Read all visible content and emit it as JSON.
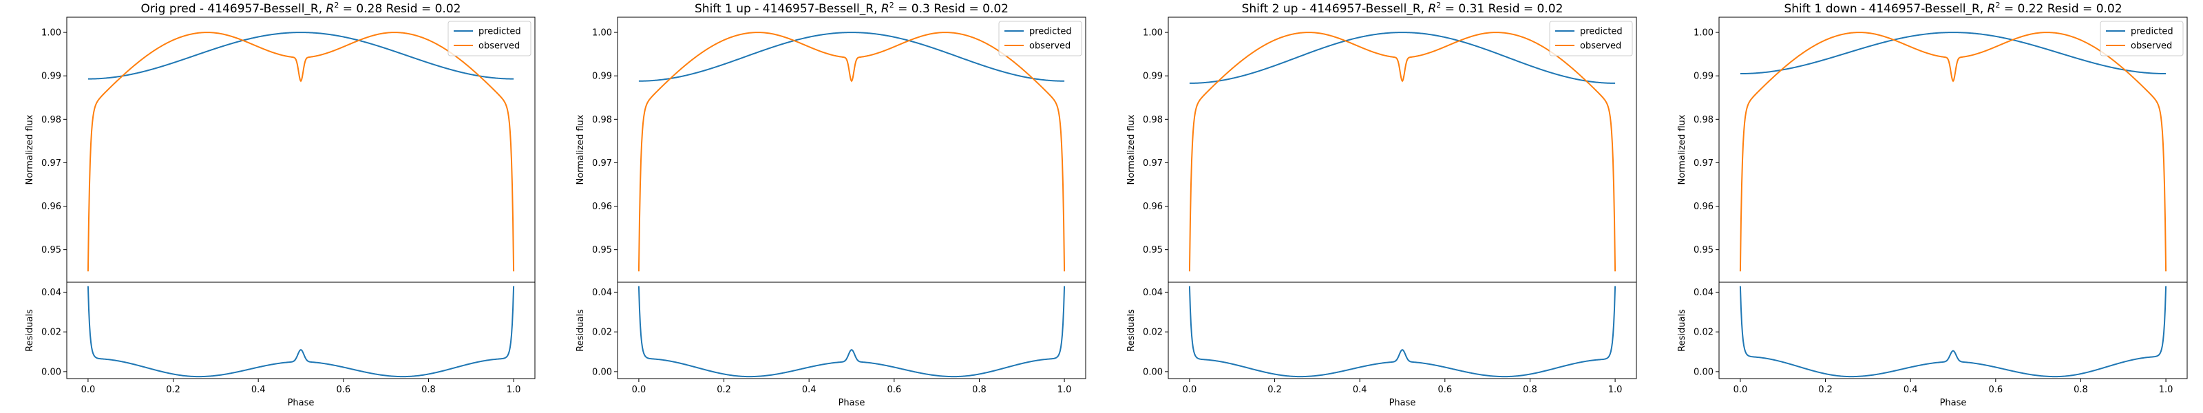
{
  "chart_data": [
    {
      "type": "line",
      "title": "Orig pred - 4146957-Bessell_R, R² = 0.28 Resid = 0.02",
      "title_parts": {
        "prefix": "Orig pred - 4146957-Bessell_R, ",
        "r2_symbol": "R",
        "r2_exp": "2",
        "r2_value": " = 0.28",
        "resid": " Resid = 0.02"
      },
      "top": {
        "ylabel": "Normalized flux",
        "ylim": [
          0.9425,
          1.0035
        ],
        "yticks": [
          "0.95",
          "0.96",
          "0.97",
          "0.98",
          "0.99",
          "1.00"
        ],
        "pred_min": 0.9893
      },
      "bottom": {
        "ylabel": "Residuals",
        "xlabel": "Phase",
        "ylim": [
          -0.0035,
          0.045
        ],
        "yticks": [
          "0.00",
          "0.02",
          "0.04"
        ],
        "xticks": [
          "0.0",
          "0.2",
          "0.4",
          "0.6",
          "0.8",
          "1.0"
        ],
        "resid_end": 0.043,
        "resid_plateau": 0.0065,
        "resid_min": -0.0025,
        "resid_mid": 0.005,
        "resid_peak": 0.011
      },
      "xlim": [
        -0.05,
        1.05
      ],
      "legend": {
        "position": "top-right",
        "entries": [
          "predicted",
          "observed"
        ]
      },
      "series": [
        {
          "name": "predicted",
          "color": "#1f77b4",
          "desc": "cosine, min at phase 0/1, max 1.00 at phase 0.5"
        },
        {
          "name": "observed",
          "color": "#ff7f0e",
          "desc": "double-peaked, peaks 1.00 at phases ~0.28 and ~0.72, dip 0.9888 at 0.5, edges 0.945"
        }
      ]
    },
    {
      "type": "line",
      "title": "Shift 1 up - 4146957-Bessell_R, R² = 0.3 Resid = 0.02",
      "title_parts": {
        "prefix": "Shift 1 up - 4146957-Bessell_R, ",
        "r2_symbol": "R",
        "r2_exp": "2",
        "r2_value": " = 0.3",
        "resid": " Resid = 0.02"
      },
      "top": {
        "ylabel": "Normalized flux",
        "ylim": [
          0.9425,
          1.0035
        ],
        "yticks": [
          "0.95",
          "0.96",
          "0.97",
          "0.98",
          "0.99",
          "1.00"
        ],
        "pred_min": 0.9888
      },
      "bottom": {
        "ylabel": "Residuals",
        "xlabel": "Phase",
        "ylim": [
          -0.0035,
          0.045
        ],
        "yticks": [
          "0.00",
          "0.02",
          "0.04"
        ],
        "xticks": [
          "0.0",
          "0.2",
          "0.4",
          "0.6",
          "0.8",
          "1.0"
        ],
        "resid_end": 0.043,
        "resid_plateau": 0.0065,
        "resid_min": -0.0025,
        "resid_mid": 0.005,
        "resid_peak": 0.011
      },
      "xlim": [
        -0.05,
        1.05
      ],
      "legend": {
        "position": "top-right",
        "entries": [
          "predicted",
          "observed"
        ]
      },
      "series": [
        {
          "name": "predicted",
          "color": "#1f77b4",
          "desc": "cosine, min at phase 0/1, max 1.00 at phase 0.5"
        },
        {
          "name": "observed",
          "color": "#ff7f0e",
          "desc": "double-peaked, peaks 1.00 at phases ~0.28 and ~0.72, dip 0.9888 at 0.5, edges 0.945"
        }
      ]
    },
    {
      "type": "line",
      "title": "Shift 2 up - 4146957-Bessell_R, R² = 0.31 Resid = 0.02",
      "title_parts": {
        "prefix": "Shift 2 up - 4146957-Bessell_R, ",
        "r2_symbol": "R",
        "r2_exp": "2",
        "r2_value": " = 0.31",
        "resid": " Resid = 0.02"
      },
      "top": {
        "ylabel": "Normalized flux",
        "ylim": [
          0.9425,
          1.0035
        ],
        "yticks": [
          "0.95",
          "0.96",
          "0.97",
          "0.98",
          "0.99",
          "1.00"
        ],
        "pred_min": 0.9883
      },
      "bottom": {
        "ylabel": "Residuals",
        "xlabel": "Phase",
        "ylim": [
          -0.0035,
          0.045
        ],
        "yticks": [
          "0.00",
          "0.02",
          "0.04"
        ],
        "xticks": [
          "0.0",
          "0.2",
          "0.4",
          "0.6",
          "0.8",
          "1.0"
        ],
        "resid_end": 0.043,
        "resid_plateau": 0.0062,
        "resid_min": -0.0025,
        "resid_mid": 0.005,
        "resid_peak": 0.011
      },
      "xlim": [
        -0.05,
        1.05
      ],
      "legend": {
        "position": "top-right",
        "entries": [
          "predicted",
          "observed"
        ]
      },
      "series": [
        {
          "name": "predicted",
          "color": "#1f77b4",
          "desc": "cosine, min at phase 0/1, max 1.00 at phase 0.5"
        },
        {
          "name": "observed",
          "color": "#ff7f0e",
          "desc": "double-peaked, peaks 1.00 at phases ~0.28 and ~0.72, dip 0.9888 at 0.5, edges 0.945"
        }
      ]
    },
    {
      "type": "line",
      "title": "Shift 1 down - 4146957-Bessell_R, R² = 0.22 Resid = 0.02",
      "title_parts": {
        "prefix": "Shift 1 down - 4146957-Bessell_R, ",
        "r2_symbol": "R",
        "r2_exp": "2",
        "r2_value": " = 0.22",
        "resid": " Resid = 0.02"
      },
      "top": {
        "ylabel": "Normalized flux",
        "ylim": [
          0.9425,
          1.0035
        ],
        "yticks": [
          "0.95",
          "0.96",
          "0.97",
          "0.98",
          "0.99",
          "1.00"
        ],
        "pred_min": 0.9905
      },
      "bottom": {
        "ylabel": "Residuals",
        "xlabel": "Phase",
        "ylim": [
          -0.0035,
          0.045
        ],
        "yticks": [
          "0.00",
          "0.02",
          "0.04"
        ],
        "xticks": [
          "0.0",
          "0.2",
          "0.4",
          "0.6",
          "0.8",
          "1.0"
        ],
        "resid_end": 0.043,
        "resid_plateau": 0.0075,
        "resid_min": -0.0025,
        "resid_mid": 0.005,
        "resid_peak": 0.0105
      },
      "xlim": [
        -0.05,
        1.05
      ],
      "legend": {
        "position": "top-right",
        "entries": [
          "predicted",
          "observed"
        ]
      },
      "series": [
        {
          "name": "predicted",
          "color": "#1f77b4",
          "desc": "cosine, min at phase 0/1, max 1.00 at phase 0.5"
        },
        {
          "name": "observed",
          "color": "#ff7f0e",
          "desc": "double-peaked, peaks 1.00 at phases ~0.28 and ~0.72, dip 0.9888 at 0.5, edges 0.945"
        }
      ]
    }
  ]
}
